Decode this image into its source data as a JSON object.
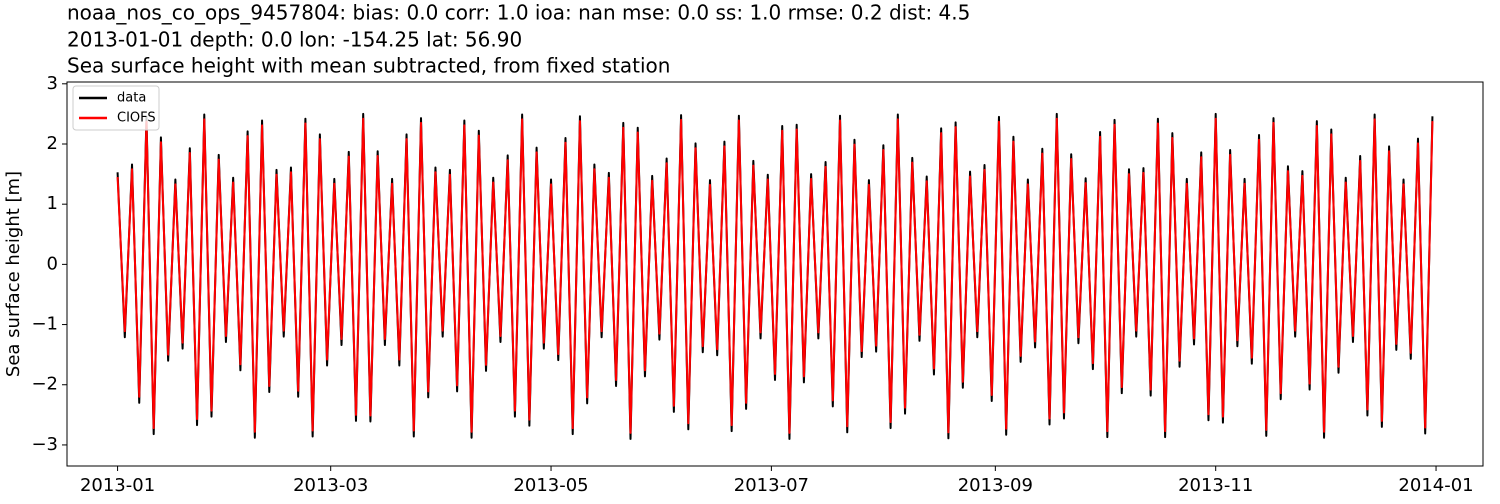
{
  "chart_data": {
    "type": "line",
    "title": [
      "noaa_nos_co_ops_9457804: bias: 0.0  corr: 1.0  ioa: nan  mse: 0.0  ss: 1.0  rmse: 0.2  dist: 4.5",
      "2013-01-01 depth: 0.0 lon: -154.25 lat: 56.90",
      "Sea surface height with mean subtracted, from fixed station"
    ],
    "ylabel": "Sea surface height [m]",
    "x": [
      "2013-01-01",
      "2013-01-03",
      "2013-01-05",
      "2013-01-07",
      "2013-01-09",
      "2013-01-11",
      "2013-01-13",
      "2013-01-15",
      "2013-01-17",
      "2013-01-19",
      "2013-01-21",
      "2013-01-23",
      "2013-01-25",
      "2013-01-27",
      "2013-01-29",
      "2013-01-31",
      "2013-02-02",
      "2013-02-04",
      "2013-02-06",
      "2013-02-08",
      "2013-02-10",
      "2013-02-12",
      "2013-02-14",
      "2013-02-16",
      "2013-02-18",
      "2013-02-20",
      "2013-02-22",
      "2013-02-24",
      "2013-02-26",
      "2013-02-28",
      "2013-03-02",
      "2013-03-04",
      "2013-03-06",
      "2013-03-08",
      "2013-03-10",
      "2013-03-12",
      "2013-03-14",
      "2013-03-16",
      "2013-03-18",
      "2013-03-20",
      "2013-03-22",
      "2013-03-24",
      "2013-03-26",
      "2013-03-28",
      "2013-03-30",
      "2013-04-01",
      "2013-04-03",
      "2013-04-05",
      "2013-04-07",
      "2013-04-09",
      "2013-04-11",
      "2013-04-13",
      "2013-04-15",
      "2013-04-17",
      "2013-04-19",
      "2013-04-21",
      "2013-04-23",
      "2013-04-25",
      "2013-04-27",
      "2013-04-29",
      "2013-05-01",
      "2013-05-03",
      "2013-05-05",
      "2013-05-07",
      "2013-05-09",
      "2013-05-11",
      "2013-05-13",
      "2013-05-15",
      "2013-05-17",
      "2013-05-19",
      "2013-05-21",
      "2013-05-23",
      "2013-05-25",
      "2013-05-27",
      "2013-05-29",
      "2013-05-31",
      "2013-06-02",
      "2013-06-04",
      "2013-06-06",
      "2013-06-08",
      "2013-06-10",
      "2013-06-12",
      "2013-06-14",
      "2013-06-16",
      "2013-06-18",
      "2013-06-20",
      "2013-06-22",
      "2013-06-24",
      "2013-06-26",
      "2013-06-28",
      "2013-06-30",
      "2013-07-02",
      "2013-07-04",
      "2013-07-06",
      "2013-07-08",
      "2013-07-10",
      "2013-07-12",
      "2013-07-14",
      "2013-07-16",
      "2013-07-18",
      "2013-07-20",
      "2013-07-22",
      "2013-07-24",
      "2013-07-26",
      "2013-07-28",
      "2013-07-30",
      "2013-08-01",
      "2013-08-03",
      "2013-08-05",
      "2013-08-07",
      "2013-08-09",
      "2013-08-11",
      "2013-08-13",
      "2013-08-15",
      "2013-08-17",
      "2013-08-19",
      "2013-08-21",
      "2013-08-23",
      "2013-08-25",
      "2013-08-27",
      "2013-08-29",
      "2013-08-31",
      "2013-09-02",
      "2013-09-04",
      "2013-09-06",
      "2013-09-08",
      "2013-09-10",
      "2013-09-12",
      "2013-09-14",
      "2013-09-16",
      "2013-09-18",
      "2013-09-20",
      "2013-09-22",
      "2013-09-24",
      "2013-09-26",
      "2013-09-28",
      "2013-09-30",
      "2013-10-02",
      "2013-10-04",
      "2013-10-06",
      "2013-10-08",
      "2013-10-10",
      "2013-10-12",
      "2013-10-14",
      "2013-10-16",
      "2013-10-18",
      "2013-10-20",
      "2013-10-22",
      "2013-10-24",
      "2013-10-26",
      "2013-10-28",
      "2013-10-30",
      "2013-11-01",
      "2013-11-03",
      "2013-11-05",
      "2013-11-07",
      "2013-11-09",
      "2013-11-11",
      "2013-11-13",
      "2013-11-15",
      "2013-11-17",
      "2013-11-19",
      "2013-11-21",
      "2013-11-23",
      "2013-11-25",
      "2013-11-27",
      "2013-11-29",
      "2013-12-01",
      "2013-12-03",
      "2013-12-05",
      "2013-12-07",
      "2013-12-09",
      "2013-12-11",
      "2013-12-13",
      "2013-12-15",
      "2013-12-17",
      "2013-12-19",
      "2013-12-21",
      "2013-12-23",
      "2013-12-25",
      "2013-12-27",
      "2013-12-29",
      "2013-12-31"
    ],
    "series": [
      {
        "name": "data",
        "color": "#000000",
        "values": [
          1.53,
          -1.21,
          1.66,
          -2.3,
          2.45,
          -2.82,
          2.11,
          -1.6,
          1.41,
          -1.4,
          1.93,
          -2.67,
          2.49,
          -2.53,
          1.82,
          -1.29,
          1.44,
          -1.76,
          2.21,
          -2.88,
          2.39,
          -2.12,
          1.57,
          -1.2,
          1.61,
          -2.2,
          2.42,
          -2.86,
          2.16,
          -1.68,
          1.42,
          -1.34,
          1.87,
          -2.6,
          2.5,
          -2.61,
          1.88,
          -1.34,
          1.42,
          -1.68,
          2.16,
          -2.86,
          2.43,
          -2.21,
          1.61,
          -1.2,
          1.57,
          -2.11,
          2.39,
          -2.88,
          2.22,
          -1.77,
          1.44,
          -1.29,
          1.81,
          -2.53,
          2.49,
          -2.68,
          1.94,
          -1.4,
          1.41,
          -1.59,
          2.1,
          -2.82,
          2.46,
          -2.31,
          1.66,
          -1.21,
          1.52,
          -2.02,
          2.35,
          -2.9,
          2.27,
          -1.86,
          1.47,
          -1.25,
          1.76,
          -2.45,
          2.48,
          -2.74,
          2.01,
          -1.46,
          1.4,
          -1.51,
          2.04,
          -2.77,
          2.47,
          -2.4,
          1.72,
          -1.23,
          1.49,
          -1.92,
          2.3,
          -2.9,
          2.32,
          -1.96,
          1.5,
          -1.23,
          1.7,
          -2.36,
          2.47,
          -2.79,
          2.07,
          -1.54,
          1.4,
          -1.45,
          1.98,
          -2.72,
          2.49,
          -2.48,
          1.77,
          -1.27,
          1.46,
          -1.83,
          2.26,
          -2.89,
          2.36,
          -2.05,
          1.54,
          -1.21,
          1.65,
          -2.27,
          2.45,
          -2.83,
          2.12,
          -1.62,
          1.41,
          -1.38,
          1.92,
          -2.66,
          2.5,
          -2.56,
          1.83,
          -1.31,
          1.43,
          -1.74,
          2.2,
          -2.87,
          2.4,
          -2.14,
          1.58,
          -1.2,
          1.6,
          -2.18,
          2.42,
          -2.87,
          2.18,
          -1.7,
          1.42,
          -1.33,
          1.86,
          -2.59,
          2.5,
          -2.63,
          1.9,
          -1.36,
          1.42,
          -1.65,
          2.15,
          -2.85,
          2.43,
          -2.24,
          1.63,
          -1.2,
          1.55,
          -2.08,
          2.38,
          -2.88,
          2.24,
          -1.8,
          1.44,
          -1.29,
          1.8,
          -2.51,
          2.49,
          -2.7,
          1.96,
          -1.42,
          1.41,
          -1.57,
          2.09,
          -2.81,
          2.46
        ]
      },
      {
        "name": "CIOFS",
        "color": "#ff0000",
        "values": [
          1.45,
          -1.11,
          1.58,
          -2.2,
          2.37,
          -2.72,
          2.03,
          -1.5,
          1.33,
          -1.3,
          1.85,
          -2.57,
          2.41,
          -2.43,
          1.74,
          -1.19,
          1.36,
          -1.66,
          2.13,
          -2.78,
          2.31,
          -2.02,
          1.49,
          -1.1,
          1.53,
          -2.1,
          2.34,
          -2.76,
          2.08,
          -1.58,
          1.34,
          -1.24,
          1.79,
          -2.5,
          2.42,
          -2.51,
          1.8,
          -1.24,
          1.34,
          -1.58,
          2.08,
          -2.76,
          2.35,
          -2.11,
          1.53,
          -1.1,
          1.49,
          -2.01,
          2.31,
          -2.78,
          2.14,
          -1.67,
          1.36,
          -1.19,
          1.73,
          -2.43,
          2.41,
          -2.58,
          1.86,
          -1.3,
          1.33,
          -1.49,
          2.02,
          -2.72,
          2.38,
          -2.21,
          1.58,
          -1.11,
          1.44,
          -1.92,
          2.27,
          -2.8,
          2.19,
          -1.76,
          1.39,
          -1.15,
          1.68,
          -2.35,
          2.4,
          -2.64,
          1.93,
          -1.36,
          1.32,
          -1.41,
          1.96,
          -2.67,
          2.39,
          -2.3,
          1.64,
          -1.13,
          1.41,
          -1.82,
          2.22,
          -2.8,
          2.24,
          -1.86,
          1.42,
          -1.13,
          1.62,
          -2.26,
          2.39,
          -2.69,
          1.99,
          -1.44,
          1.32,
          -1.35,
          1.9,
          -2.62,
          2.41,
          -2.38,
          1.69,
          -1.17,
          1.38,
          -1.73,
          2.18,
          -2.79,
          2.28,
          -1.95,
          1.46,
          -1.11,
          1.57,
          -2.17,
          2.37,
          -2.73,
          2.04,
          -1.52,
          1.33,
          -1.28,
          1.84,
          -2.56,
          2.42,
          -2.46,
          1.75,
          -1.21,
          1.35,
          -1.64,
          2.12,
          -2.77,
          2.32,
          -2.04,
          1.5,
          -1.1,
          1.52,
          -2.08,
          2.34,
          -2.77,
          2.1,
          -1.6,
          1.34,
          -1.23,
          1.78,
          -2.49,
          2.42,
          -2.53,
          1.82,
          -1.26,
          1.34,
          -1.55,
          2.07,
          -2.75,
          2.35,
          -2.14,
          1.55,
          -1.1,
          1.47,
          -1.98,
          2.3,
          -2.78,
          2.16,
          -1.7,
          1.36,
          -1.19,
          1.72,
          -2.41,
          2.41,
          -2.6,
          1.88,
          -1.32,
          1.33,
          -1.47,
          2.01,
          -2.71,
          2.38
        ]
      }
    ],
    "xlim": [
      "2012-12-18",
      "2014-01-14"
    ],
    "xticks": [
      {
        "value": "2013-01-01",
        "label": "2013-01"
      },
      {
        "value": "2013-03-01",
        "label": "2013-03"
      },
      {
        "value": "2013-05-01",
        "label": "2013-05"
      },
      {
        "value": "2013-07-01",
        "label": "2013-07"
      },
      {
        "value": "2013-09-01",
        "label": "2013-09"
      },
      {
        "value": "2013-11-01",
        "label": "2013-11"
      },
      {
        "value": "2014-01-01",
        "label": "2014-01"
      }
    ],
    "ylim": [
      -3.35,
      3.03
    ],
    "yticks": [
      {
        "value": -3,
        "label": "−3"
      },
      {
        "value": -2,
        "label": "−2"
      },
      {
        "value": -1,
        "label": "−1"
      },
      0,
      1,
      2,
      3
    ],
    "grid": false,
    "legend": "upper left"
  }
}
